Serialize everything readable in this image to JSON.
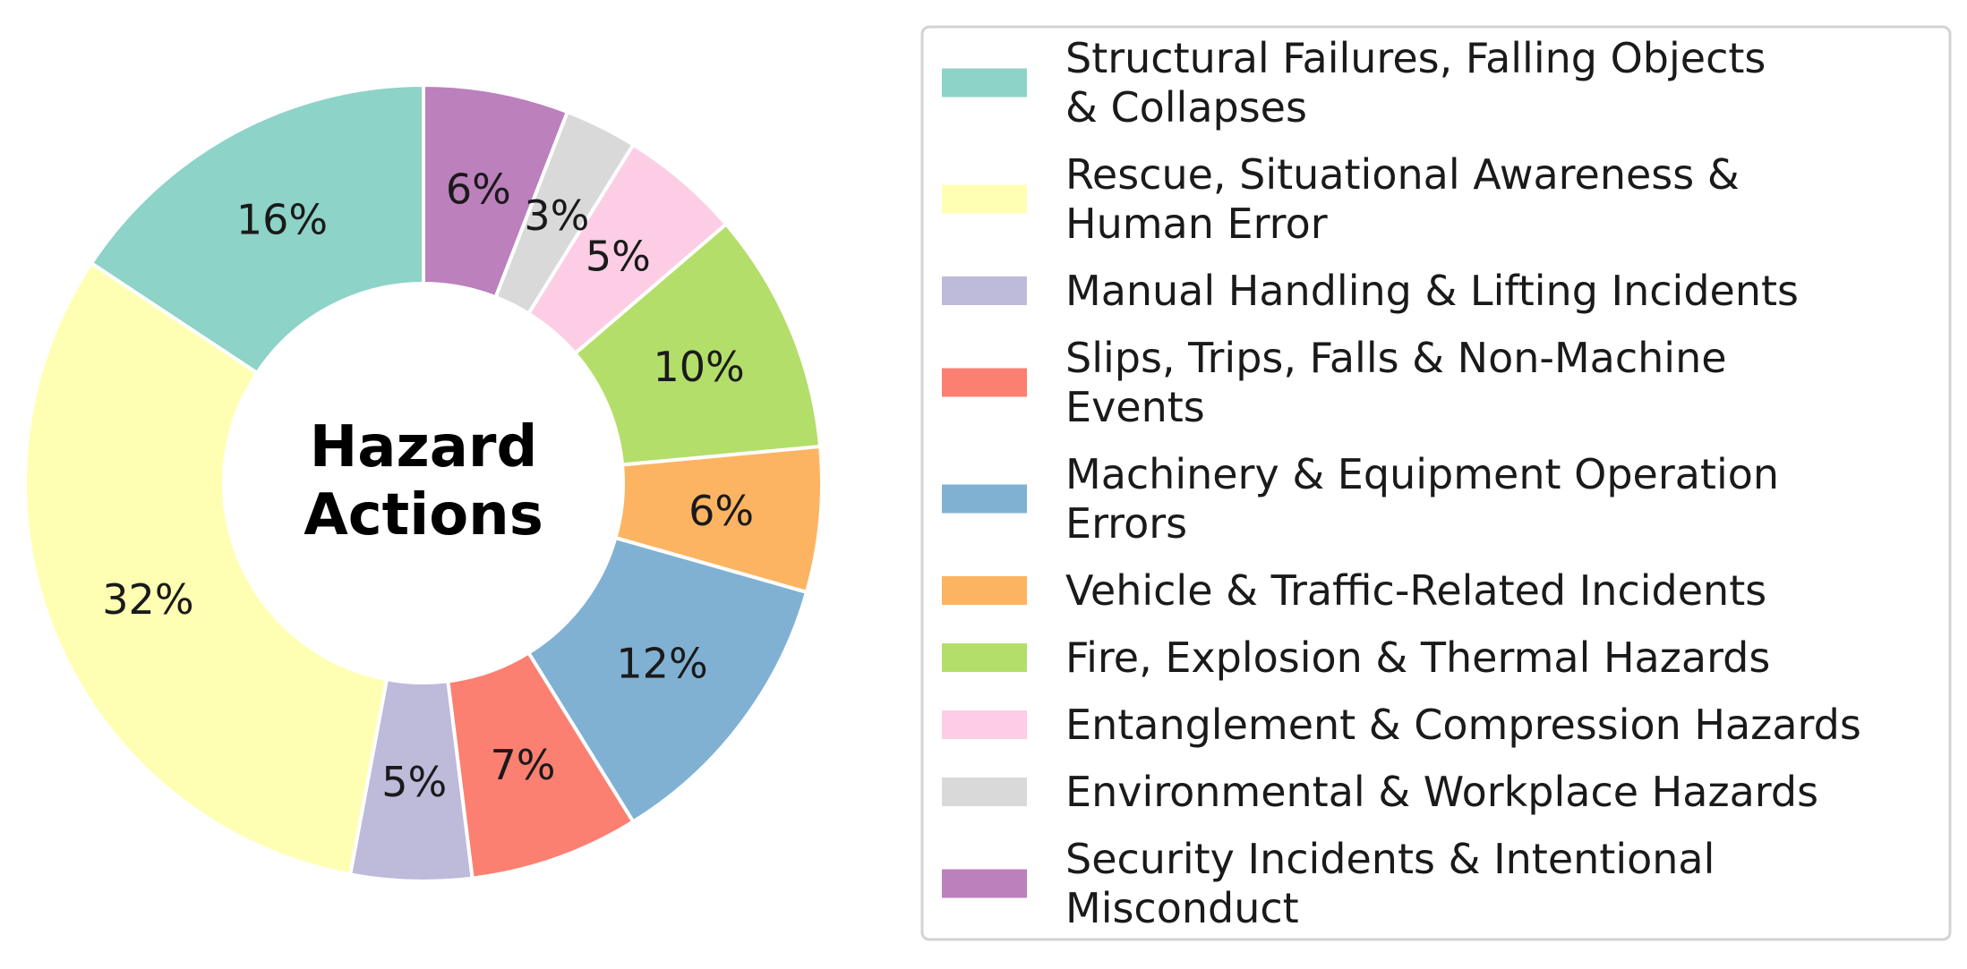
{
  "chart_data": {
    "type": "pie",
    "donut": true,
    "center_title": [
      "Hazard",
      "Actions"
    ],
    "legend_position": "right",
    "slices": [
      {
        "label": [
          "Structural Failures, Falling Objects",
          "& Collapses"
        ],
        "value": 16,
        "pct_label": "16%",
        "color": "#8dd3c7"
      },
      {
        "label": [
          "Rescue, Situational Awareness &",
          "Human Error"
        ],
        "value": 32,
        "pct_label": "32%",
        "color": "#ffffb3"
      },
      {
        "label": [
          "Manual Handling & Lifting Incidents"
        ],
        "value": 5,
        "pct_label": "5%",
        "color": "#bebada"
      },
      {
        "label": [
          "Slips, Trips, Falls & Non-Machine",
          "Events"
        ],
        "value": 7,
        "pct_label": "7%",
        "color": "#fb8072"
      },
      {
        "label": [
          "Machinery & Equipment Operation",
          "Errors"
        ],
        "value": 12,
        "pct_label": "12%",
        "color": "#80b1d3"
      },
      {
        "label": [
          "Vehicle & Traffic-Related Incidents"
        ],
        "value": 6,
        "pct_label": "6%",
        "color": "#fdb462"
      },
      {
        "label": [
          "Fire, Explosion & Thermal Hazards"
        ],
        "value": 10,
        "pct_label": "10%",
        "color": "#b3de69"
      },
      {
        "label": [
          "Entanglement & Compression Hazards"
        ],
        "value": 5,
        "pct_label": "5%",
        "color": "#fccde5"
      },
      {
        "label": [
          "Environmental & Workplace Hazards"
        ],
        "value": 3,
        "pct_label": "3%",
        "color": "#d9d9d9"
      },
      {
        "label": [
          "Security Incidents & Intentional",
          "Misconduct"
        ],
        "value": 6,
        "pct_label": "6%",
        "color": "#bc80bd"
      }
    ]
  }
}
